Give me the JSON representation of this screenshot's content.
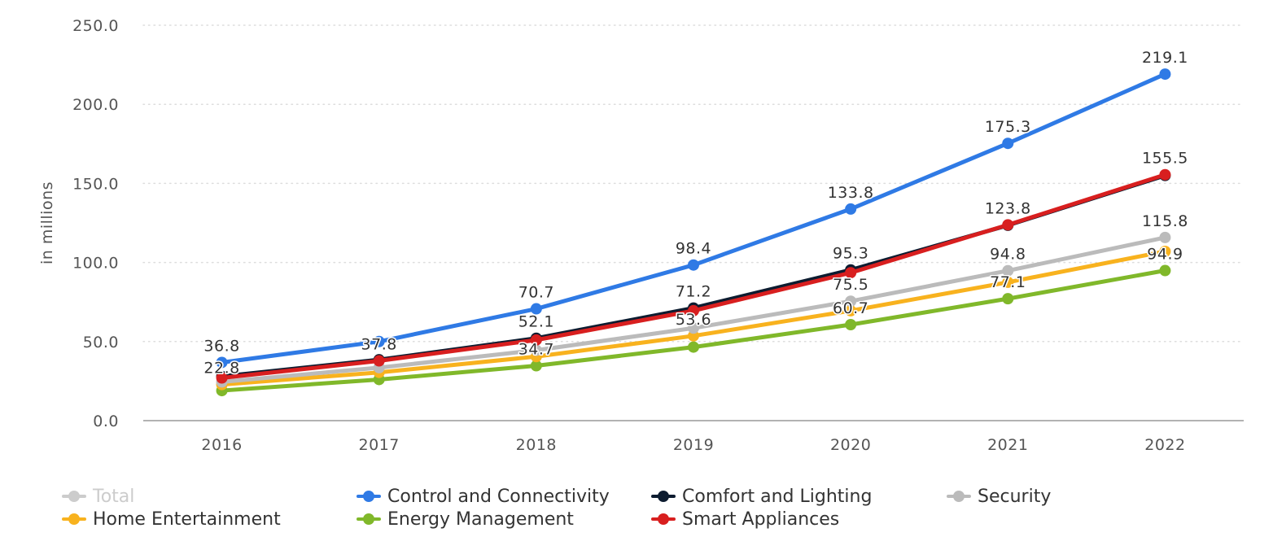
{
  "chart_data": {
    "type": "line",
    "title": "",
    "xlabel": "",
    "ylabel": "in millions",
    "ylim": [
      0,
      250
    ],
    "yticks": [
      "0.0",
      "50.0",
      "100.0",
      "150.0",
      "200.0",
      "250.0"
    ],
    "grid": true,
    "legend_position": "bottom",
    "categories": [
      "2016",
      "2017",
      "2018",
      "2019",
      "2020",
      "2021",
      "2022"
    ],
    "series": [
      {
        "key": "total",
        "name": "Total",
        "color": "#cccccc",
        "visible": false,
        "values": [
          null,
          null,
          null,
          null,
          null,
          null,
          null
        ],
        "labels": [
          "",
          "",
          "",
          "",
          "",
          "",
          ""
        ]
      },
      {
        "key": "control",
        "name": "Control and Connectivity",
        "color": "#2f7ae5",
        "visible": true,
        "values": [
          36.8,
          50.0,
          70.7,
          98.4,
          133.8,
          175.3,
          219.1
        ],
        "labels": [
          "36.8",
          "",
          "70.7",
          "98.4",
          "133.8",
          "175.3",
          "219.1"
        ]
      },
      {
        "key": "comfort",
        "name": "Comfort and Lighting",
        "color": "#0d1c30",
        "visible": true,
        "values": [
          28.0,
          38.5,
          52.1,
          71.2,
          95.3,
          123.5,
          155.0
        ],
        "labels": [
          "",
          "",
          "52.1",
          "71.2",
          "95.3",
          "",
          ""
        ]
      },
      {
        "key": "security",
        "name": "Security",
        "color": "#bbbbbb",
        "visible": true,
        "values": [
          24.5,
          33.5,
          44.5,
          58.5,
          75.5,
          94.8,
          115.8
        ],
        "labels": [
          "",
          "",
          "",
          "",
          "75.5",
          "94.8",
          "115.8"
        ]
      },
      {
        "key": "home",
        "name": "Home Entertainment",
        "color": "#f8b21e",
        "visible": true,
        "values": [
          22.8,
          30.5,
          40.5,
          53.6,
          69.5,
          87.5,
          107.0
        ],
        "labels": [
          "22.8",
          "",
          "",
          "53.6",
          "",
          "",
          ""
        ]
      },
      {
        "key": "energy",
        "name": "Energy Management",
        "color": "#80b82a",
        "visible": true,
        "values": [
          19.0,
          26.0,
          34.7,
          46.5,
          60.7,
          77.1,
          94.9
        ],
        "labels": [
          "",
          "",
          "34.7",
          "",
          "60.7",
          "77.1",
          "94.9"
        ]
      },
      {
        "key": "appliances",
        "name": "Smart Appliances",
        "color": "#d81f1f",
        "visible": true,
        "values": [
          27.0,
          37.8,
          51.0,
          69.5,
          93.5,
          123.8,
          155.5
        ],
        "labels": [
          "",
          "37.8",
          "",
          "",
          "",
          "123.8",
          "155.5"
        ]
      }
    ]
  }
}
